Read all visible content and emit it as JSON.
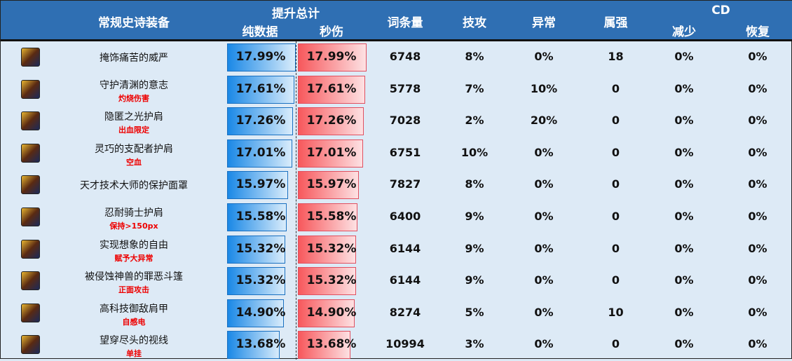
{
  "header": {
    "equipment": "常规史诗装备",
    "total": "提升总计",
    "pure": "纯数据",
    "dps": "秒伤",
    "affix_count": "词条量",
    "tech": "技攻",
    "abnormal": "异常",
    "attr": "属强",
    "cd": "CD",
    "cd_reduce": "减少",
    "cd_recover": "恢复"
  },
  "max_value": 17.99,
  "rows": [
    {
      "name": "掩饰痛苦的威严",
      "tag": "",
      "pure": "17.99%",
      "pure_v": 17.99,
      "dps": "17.99%",
      "dps_v": 17.99,
      "count": "6748",
      "tech": "8%",
      "abnormal": "0%",
      "attr": "18",
      "cd_reduce": "0%",
      "cd_recover": "0%"
    },
    {
      "name": "守护清渊的意志",
      "tag": "灼烧伤害",
      "pure": "17.61%",
      "pure_v": 17.61,
      "dps": "17.61%",
      "dps_v": 17.61,
      "count": "5778",
      "tech": "7%",
      "abnormal": "10%",
      "attr": "0",
      "cd_reduce": "0%",
      "cd_recover": "0%"
    },
    {
      "name": "隐匿之光护肩",
      "tag": "出血限定",
      "pure": "17.26%",
      "pure_v": 17.26,
      "dps": "17.26%",
      "dps_v": 17.26,
      "count": "7028",
      "tech": "2%",
      "abnormal": "20%",
      "attr": "0",
      "cd_reduce": "0%",
      "cd_recover": "0%"
    },
    {
      "name": "灵巧的支配者护肩",
      "tag": "空血",
      "pure": "17.01%",
      "pure_v": 17.01,
      "dps": "17.01%",
      "dps_v": 17.01,
      "count": "6751",
      "tech": "10%",
      "abnormal": "0%",
      "attr": "0",
      "cd_reduce": "0%",
      "cd_recover": "0%"
    },
    {
      "name": "天才技术大师的保护面罩",
      "tag": "",
      "pure": "15.97%",
      "pure_v": 15.97,
      "dps": "15.97%",
      "dps_v": 15.97,
      "count": "7827",
      "tech": "8%",
      "abnormal": "0%",
      "attr": "0",
      "cd_reduce": "0%",
      "cd_recover": "0%"
    },
    {
      "name": "忍耐骑士护肩",
      "tag": "保持>150px",
      "pure": "15.58%",
      "pure_v": 15.58,
      "dps": "15.58%",
      "dps_v": 15.58,
      "count": "6400",
      "tech": "9%",
      "abnormal": "0%",
      "attr": "0",
      "cd_reduce": "0%",
      "cd_recover": "0%"
    },
    {
      "name": "实现想象的自由",
      "tag": "赋予大异常",
      "pure": "15.32%",
      "pure_v": 15.32,
      "dps": "15.32%",
      "dps_v": 15.32,
      "count": "6144",
      "tech": "9%",
      "abnormal": "0%",
      "attr": "0",
      "cd_reduce": "0%",
      "cd_recover": "0%"
    },
    {
      "name": "被侵蚀神兽的罪恶斗篷",
      "tag": "正面攻击",
      "pure": "15.32%",
      "pure_v": 15.32,
      "dps": "15.32%",
      "dps_v": 15.32,
      "count": "6144",
      "tech": "9%",
      "abnormal": "0%",
      "attr": "0",
      "cd_reduce": "0%",
      "cd_recover": "0%"
    },
    {
      "name": "高科技御敌肩甲",
      "tag": "自感电",
      "pure": "14.90%",
      "pure_v": 14.9,
      "dps": "14.90%",
      "dps_v": 14.9,
      "count": "8274",
      "tech": "5%",
      "abnormal": "0%",
      "attr": "10",
      "cd_reduce": "0%",
      "cd_recover": "0%"
    },
    {
      "name": "望穿尽头的视线",
      "tag": "单挂",
      "pure": "13.68%",
      "pure_v": 13.68,
      "dps": "13.68%",
      "dps_v": 13.68,
      "count": "10994",
      "tech": "3%",
      "abnormal": "0%",
      "attr": "0",
      "cd_reduce": "0%",
      "cd_recover": "0%"
    }
  ]
}
